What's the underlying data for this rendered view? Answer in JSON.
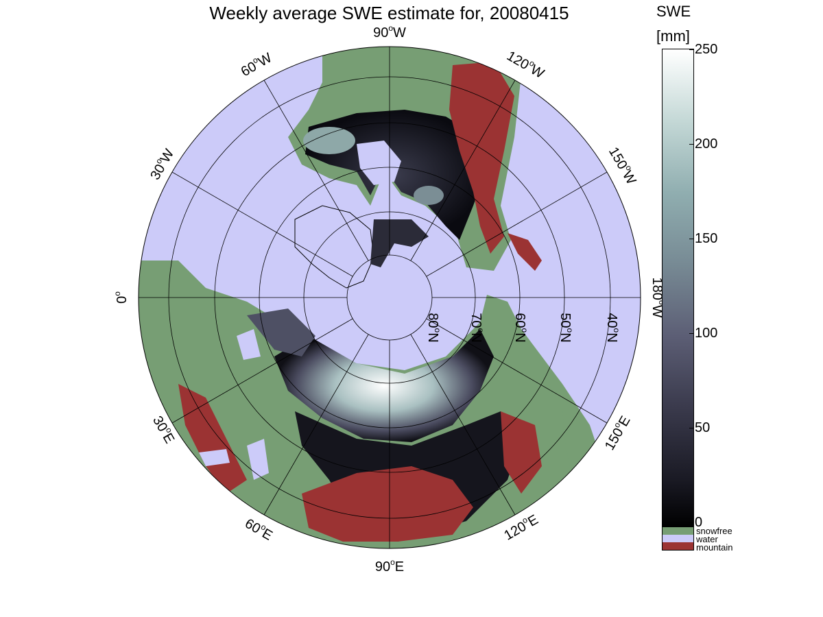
{
  "title": "Weekly average SWE estimate for, 20080415",
  "colorbar": {
    "title": "SWE",
    "unit": "[mm]",
    "ticks": [
      "0",
      "50",
      "100",
      "150",
      "200",
      "250"
    ],
    "range": [
      0,
      250
    ]
  },
  "legend": [
    {
      "label": "snowfree",
      "color": "#779e74"
    },
    {
      "label": "water",
      "color": "#cccbf9"
    },
    {
      "label": "mountain",
      "color": "#9b3333"
    }
  ],
  "map": {
    "projection": "north polar stereographic",
    "longitude_labels": {
      "lon_90W": "90",
      "lon_60W": "60",
      "lon_120W": "120",
      "lon_30W": "30",
      "lon_150W": "150",
      "lon_0": "0",
      "lon_180W": "180",
      "lon_30E": "30",
      "lon_150E": "150",
      "lon_60E": "60",
      "lon_120E": "120",
      "lon_90E": "90"
    },
    "longitude_suffixes": {
      "W": "W",
      "E": "E",
      "degree": "o"
    },
    "latitude_labels": [
      "80",
      "70",
      "60",
      "50",
      "40"
    ],
    "latitude_suffix": "N"
  }
}
